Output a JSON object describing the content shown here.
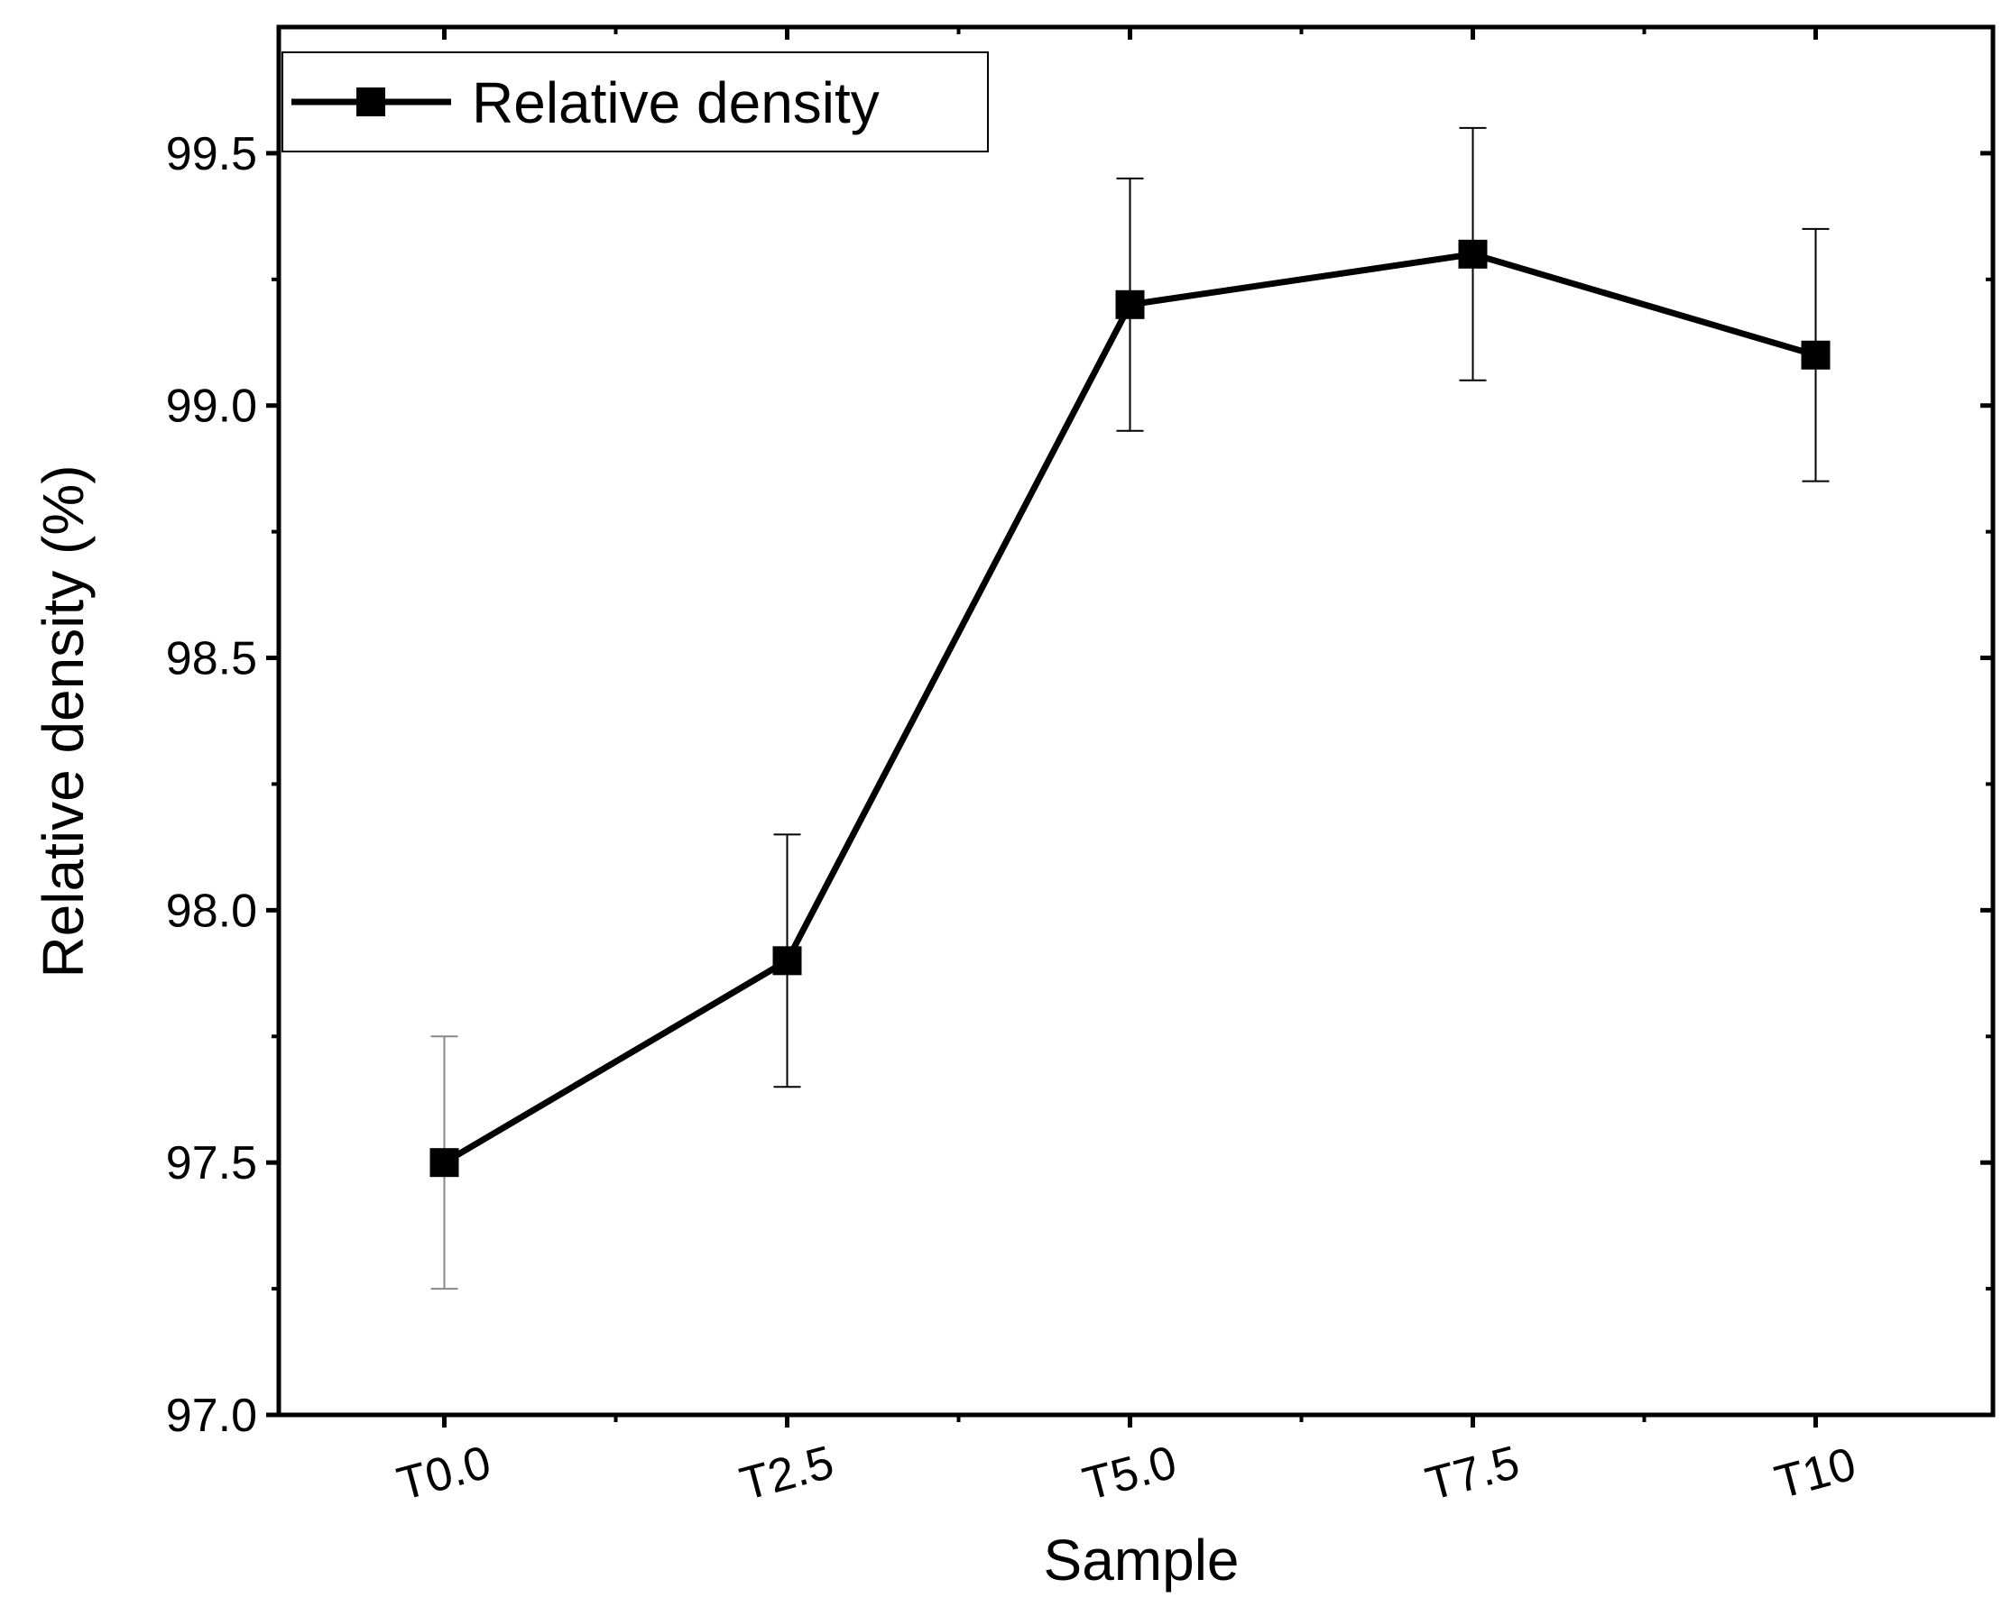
{
  "chart_data": {
    "type": "line",
    "title": "",
    "xlabel": "Sample",
    "ylabel": "Relative density (%)",
    "categories": [
      "T0.0",
      "T2.5",
      "T5.0",
      "T7.5",
      "T10"
    ],
    "series": [
      {
        "name": "Relative density",
        "values": [
          97.5,
          97.9,
          99.2,
          99.3,
          99.1
        ],
        "error": [
          0.25,
          0.25,
          0.25,
          0.25,
          0.25
        ]
      }
    ],
    "ylim": [
      97.0,
      99.75
    ],
    "yticks": [
      97.0,
      97.5,
      98.0,
      98.5,
      99.0,
      99.5
    ],
    "ytick_labels": [
      "97.0",
      "97.5",
      "98.0",
      "98.5",
      "99.0",
      "99.5"
    ],
    "grid": false,
    "legend_position": "top-left",
    "color": "#000000"
  }
}
